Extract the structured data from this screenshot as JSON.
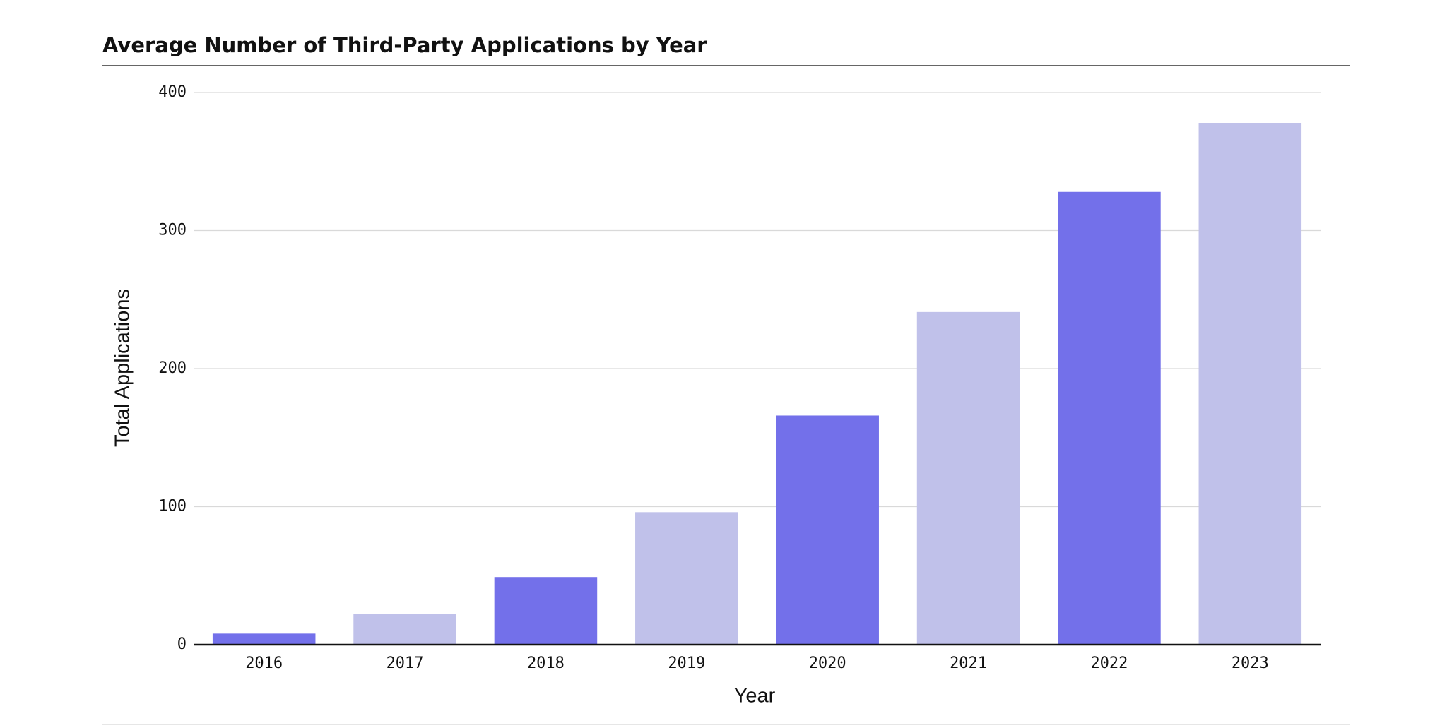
{
  "chart_data": {
    "type": "bar",
    "title": "Average Number of Third-Party Applications by Year",
    "x_label": "Year",
    "y_label": "Total Applications",
    "categories": [
      "2016",
      "2017",
      "2018",
      "2019",
      "2020",
      "2021",
      "2022",
      "2023"
    ],
    "values": [
      8,
      22,
      49,
      96,
      166,
      241,
      328,
      378
    ],
    "colors": [
      "#7370ea",
      "#c0c1ea",
      "#7370ea",
      "#c0c1ea",
      "#7370ea",
      "#c0c1ea",
      "#7370ea",
      "#c0c1ea"
    ],
    "ylim": [
      0,
      400
    ],
    "yticks": [
      0,
      100,
      200,
      300,
      400
    ],
    "grid": true
  }
}
